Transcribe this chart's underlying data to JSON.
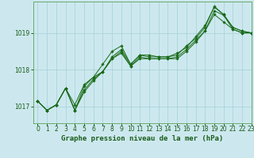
{
  "title": "Graphe pression niveau de la mer (hPa)",
  "bg_color": "#cce8ee",
  "grid_color": "#aad4dc",
  "line_color": "#1a6b1a",
  "spine_color": "#6aaa6a",
  "xlim": [
    -0.5,
    23
  ],
  "ylim": [
    1016.55,
    1019.85
  ],
  "xticks": [
    0,
    1,
    2,
    3,
    4,
    5,
    6,
    7,
    8,
    9,
    10,
    11,
    12,
    13,
    14,
    15,
    16,
    17,
    18,
    19,
    20,
    21,
    22,
    23
  ],
  "yticks": [
    1017,
    1018,
    1019
  ],
  "series": [
    [
      1017.15,
      1016.9,
      1017.05,
      1017.5,
      1017.05,
      1017.6,
      1017.8,
      1017.95,
      1018.3,
      1018.45,
      1018.1,
      1018.3,
      1018.3,
      1018.3,
      1018.3,
      1018.3,
      1018.5,
      1018.75,
      1019.05,
      1019.5,
      1019.3,
      1019.1,
      1019.0,
      1019.0
    ],
    [
      1017.15,
      1016.9,
      1017.05,
      1017.5,
      1016.9,
      1017.45,
      1017.75,
      1017.95,
      1018.35,
      1018.55,
      1018.15,
      1018.4,
      1018.35,
      1018.35,
      1018.35,
      1018.45,
      1018.6,
      1018.9,
      1019.2,
      1019.7,
      1019.5,
      1019.15,
      1019.05,
      1019.0
    ],
    [
      1017.15,
      1016.9,
      1017.05,
      1017.5,
      1016.9,
      1017.55,
      1017.8,
      1018.15,
      1018.5,
      1018.65,
      1018.15,
      1018.4,
      1018.4,
      1018.35,
      1018.35,
      1018.4,
      1018.65,
      1018.85,
      1019.15,
      1019.72,
      1019.5,
      1019.15,
      1019.05,
      1019.0
    ],
    [
      1017.15,
      1016.9,
      1017.05,
      1017.5,
      1016.9,
      1017.4,
      1017.7,
      1017.95,
      1018.3,
      1018.5,
      1018.1,
      1018.35,
      1018.3,
      1018.3,
      1018.3,
      1018.35,
      1018.55,
      1018.8,
      1019.05,
      1019.6,
      1019.48,
      1019.1,
      1019.0,
      1019.0
    ]
  ],
  "tick_fontsize": 5.5,
  "xlabel_fontsize": 6.5,
  "xlabel_color": "#1a5c1a",
  "figsize": [
    3.2,
    2.0
  ],
  "dpi": 100
}
